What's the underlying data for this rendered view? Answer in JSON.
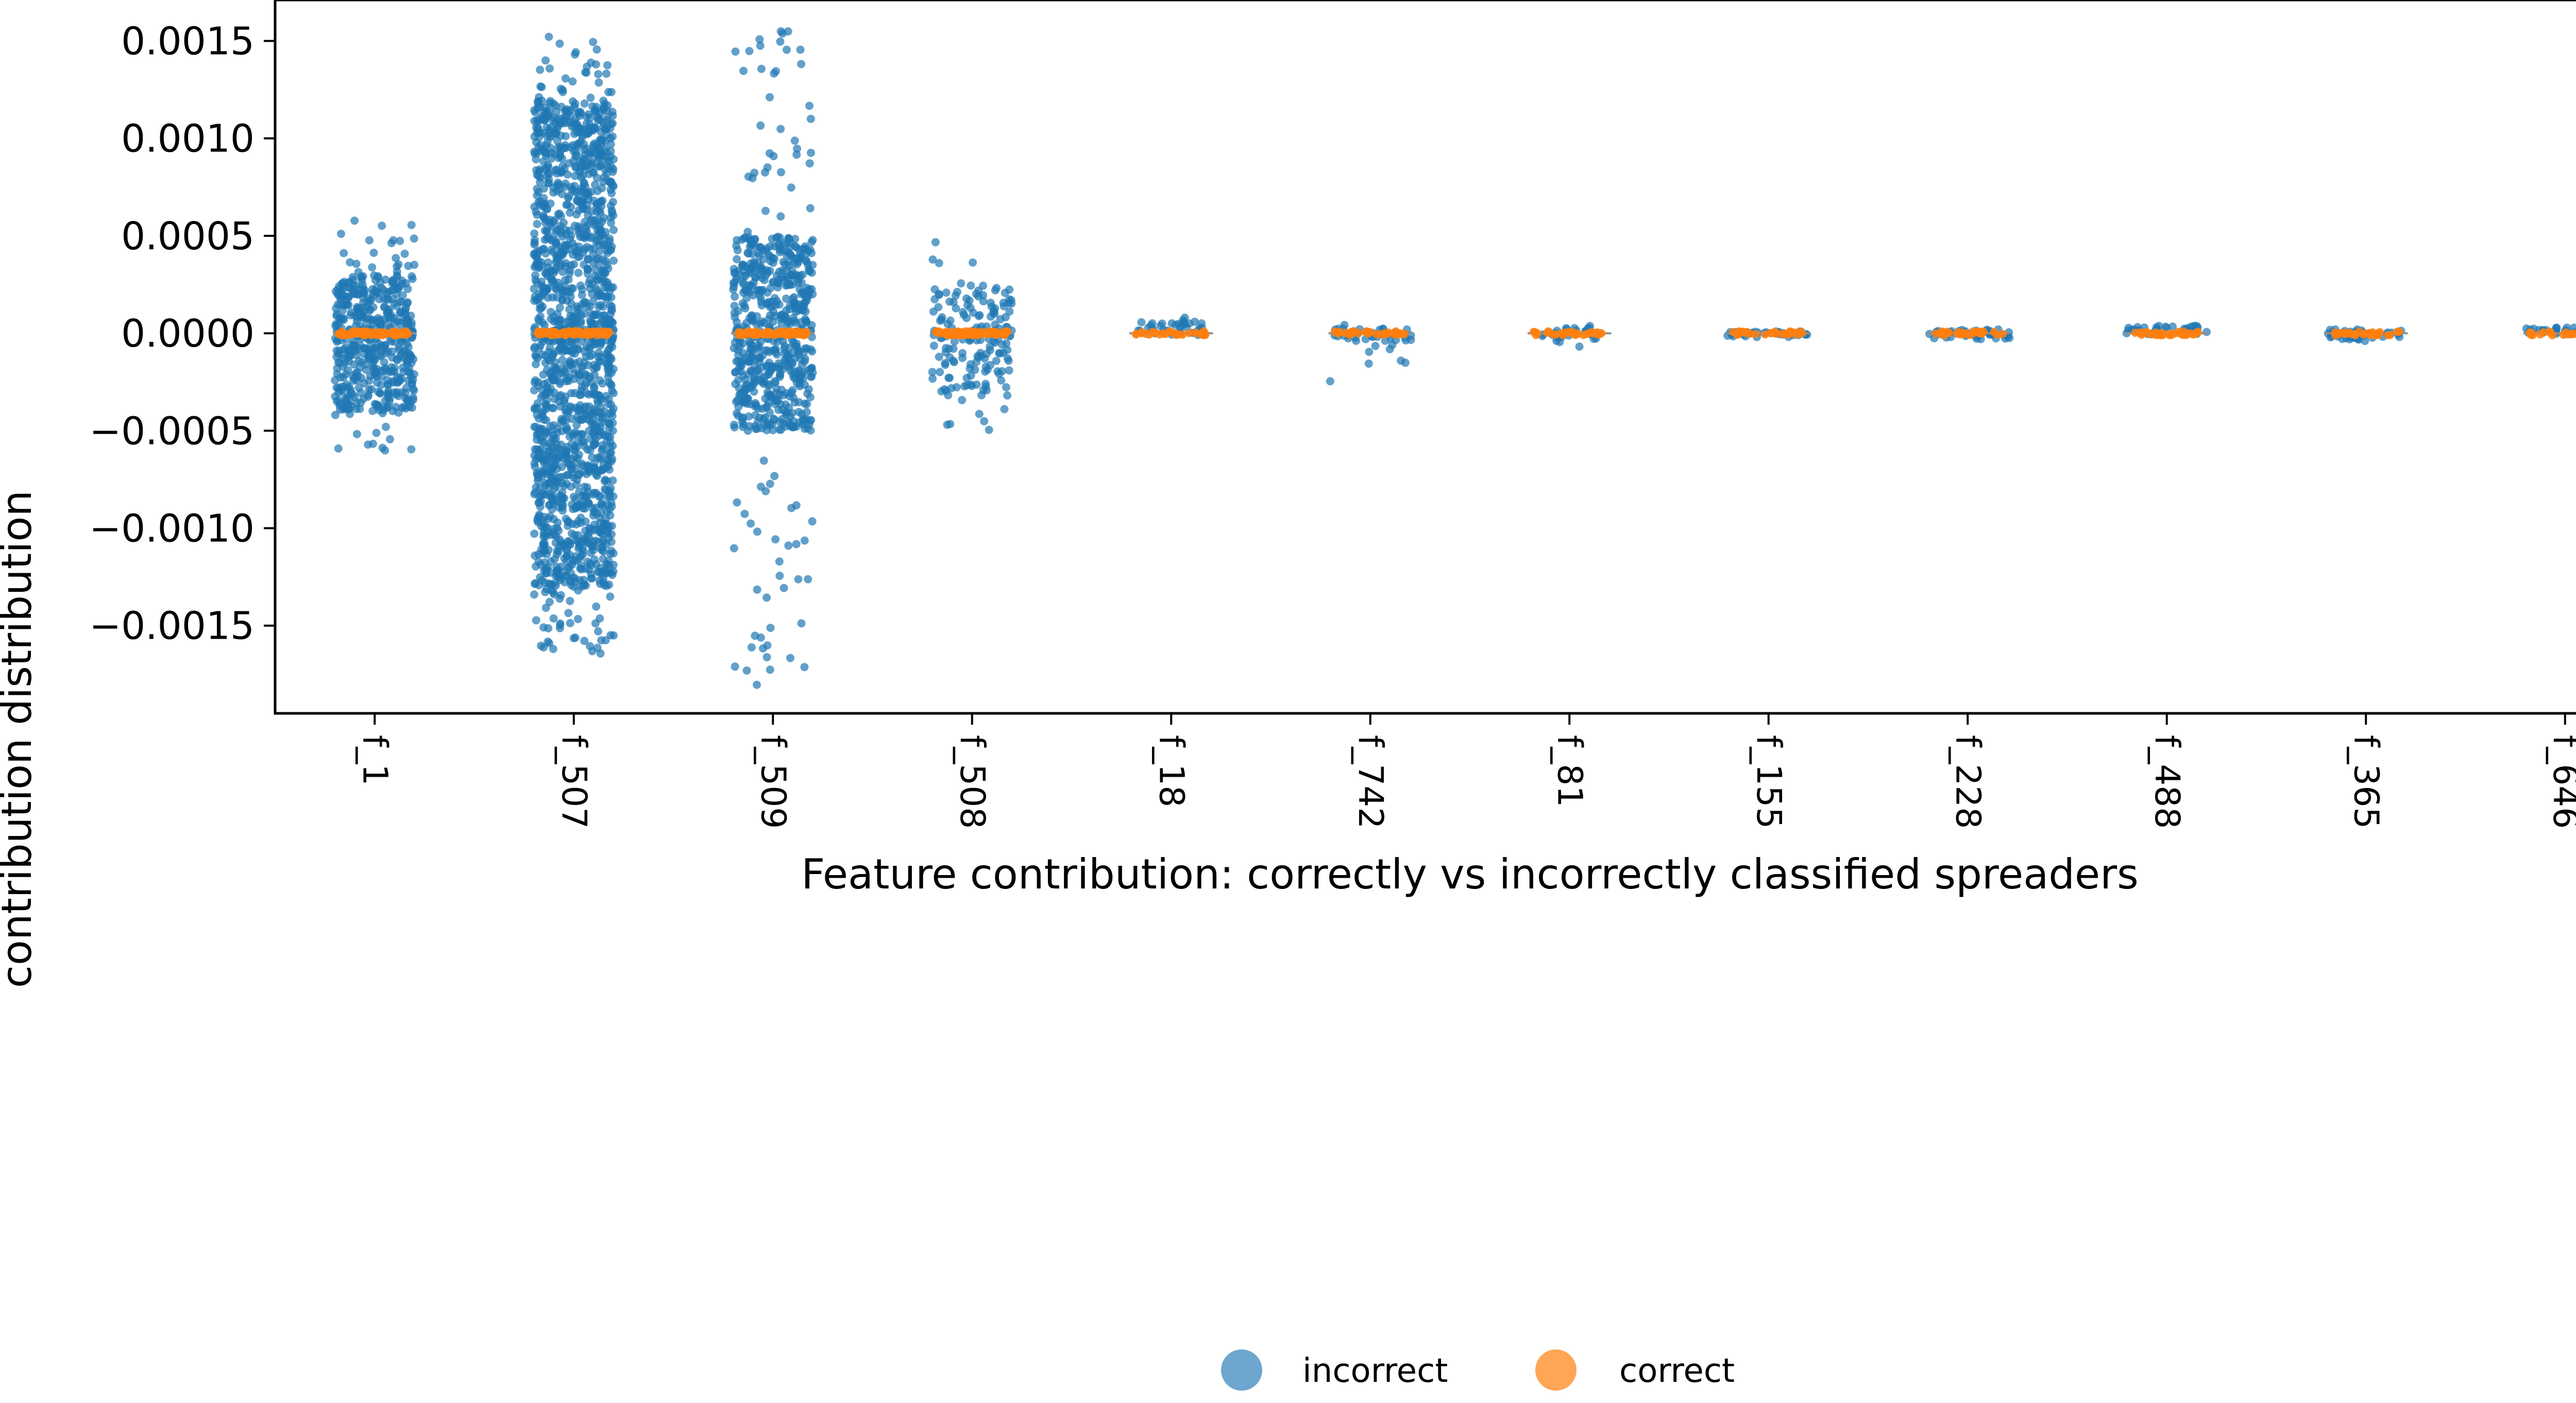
{
  "chart_data": {
    "type": "scatter",
    "subtype": "strip",
    "xlabel": "Feature contribution: correctly vs incorrectly classified spreaders",
    "ylabel": "contribution distribution",
    "categories": [
      "f_1",
      "f_507",
      "f_509",
      "f_508",
      "f_18",
      "f_742",
      "f_81",
      "f_155",
      "f_228",
      "f_488",
      "f_365",
      "f_646"
    ],
    "ylim": [
      -0.00195,
      0.00171
    ],
    "y_ticks": [
      0.0015,
      0.001,
      0.0005,
      0.0,
      -0.0005,
      -0.001,
      -0.0015
    ],
    "y_tick_labels": [
      "0.0015",
      "0.0010",
      "0.0005",
      "0.0000",
      "−0.0005",
      "−0.0010",
      "−0.0015"
    ],
    "grid": false,
    "legend_position": "bottom-center",
    "series": [
      {
        "name": "incorrect",
        "color": "#1f77b4",
        "spread": [
          {
            "min": -0.00061,
            "max": 0.0006,
            "core_min": -0.0004,
            "core_max": 0.0003
          },
          {
            "min": -0.00166,
            "max": 0.00153,
            "core_min": -0.0013,
            "core_max": 0.0012
          },
          {
            "min": -0.00181,
            "max": 0.00156,
            "core_min": -0.0005,
            "core_max": 0.0005
          },
          {
            "min": -0.00052,
            "max": 0.00058,
            "core_min": -0.0003,
            "core_max": 0.00025
          },
          {
            "min": -2e-05,
            "max": 9e-05,
            "core_min": -1e-05,
            "core_max": 6e-05
          },
          {
            "min": -0.00028,
            "max": 5e-05,
            "core_min": -4e-05,
            "core_max": 3e-05
          },
          {
            "min": -7e-05,
            "max": 4e-05,
            "core_min": -3e-05,
            "core_max": 3e-05
          },
          {
            "min": -2e-05,
            "max": 2e-05,
            "core_min": -1e-05,
            "core_max": 1e-05
          },
          {
            "min": -6e-05,
            "max": 3e-05,
            "core_min": -3e-05,
            "core_max": 2e-05
          },
          {
            "min": -2e-05,
            "max": 5e-05,
            "core_min": -1e-05,
            "core_max": 4e-05
          },
          {
            "min": -4e-05,
            "max": 3e-05,
            "core_min": -3e-05,
            "core_max": 2e-05
          },
          {
            "min": -1e-05,
            "max": 5e-05,
            "core_min": -1e-05,
            "core_max": 3e-05
          }
        ]
      },
      {
        "name": "correct",
        "color": "#ff7f0e",
        "spread": [
          {
            "min": -1e-05,
            "max": 1e-05
          },
          {
            "min": -1e-05,
            "max": 1e-05
          },
          {
            "min": -1e-05,
            "max": 1e-05
          },
          {
            "min": -1e-05,
            "max": 1e-05
          },
          {
            "min": -1e-05,
            "max": 1e-05
          },
          {
            "min": -1e-05,
            "max": 1e-05
          },
          {
            "min": -1e-05,
            "max": 1e-05
          },
          {
            "min": -1e-05,
            "max": 1e-05
          },
          {
            "min": -1e-05,
            "max": 1e-05
          },
          {
            "min": -1e-05,
            "max": 1e-05
          },
          {
            "min": -1e-05,
            "max": 1e-05
          },
          {
            "min": -1e-05,
            "max": 1e-05
          }
        ]
      }
    ]
  }
}
